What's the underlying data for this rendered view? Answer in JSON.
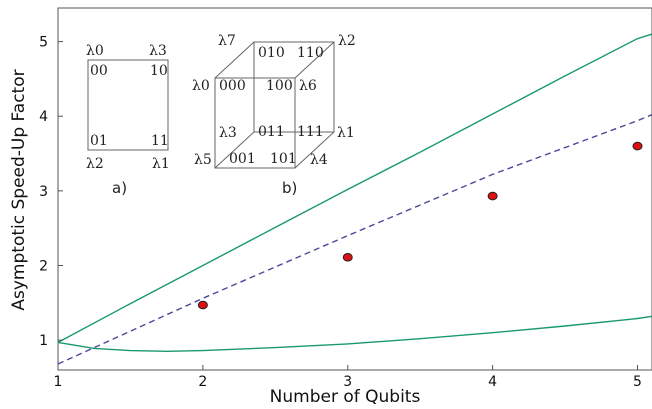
{
  "chart_data": {
    "type": "line",
    "xlabel": "Number of Qubits",
    "ylabel": "Asymptotic Speed-Up Factor",
    "xlim": [
      1,
      5.1
    ],
    "ylim": [
      0.6,
      5.45
    ],
    "xticks": [
      "1",
      "2",
      "3",
      "4",
      "5"
    ],
    "yticks": [
      "1",
      "2",
      "3",
      "4",
      "5"
    ],
    "grid": false,
    "series": [
      {
        "style": "solid",
        "color": "#1a9a6a",
        "x": [
          1,
          1.5,
          2,
          2.5,
          3,
          3.5,
          4,
          4.5,
          5,
          5.1
        ],
        "y": [
          0.97,
          1.49,
          2.0,
          2.51,
          3.02,
          3.52,
          4.03,
          4.54,
          5.04,
          5.1
        ]
      },
      {
        "style": "solid",
        "color": "#1a9a6a",
        "x": [
          1,
          1.25,
          1.5,
          1.75,
          2,
          2.5,
          3,
          3.5,
          4,
          4.5,
          5,
          5.1
        ],
        "y": [
          0.97,
          0.89,
          0.86,
          0.85,
          0.86,
          0.9,
          0.95,
          1.02,
          1.1,
          1.19,
          1.29,
          1.32
        ]
      },
      {
        "style": "dashed",
        "color": "#4a4a9a",
        "x": [
          1,
          2,
          3,
          4,
          5,
          5.1
        ],
        "y": [
          0.68,
          1.56,
          2.4,
          3.22,
          3.94,
          4.02
        ]
      },
      {
        "style": "points",
        "color": "#dd1111",
        "x": [
          2,
          3,
          4,
          5
        ],
        "y": [
          1.47,
          2.11,
          2.93,
          3.6
        ]
      }
    ]
  },
  "insets": {
    "a": {
      "label": "a)",
      "corner_labels": [
        "λ0",
        "λ3",
        "λ2",
        "λ1"
      ],
      "bits": [
        "00",
        "10",
        "01",
        "11"
      ]
    },
    "b": {
      "label": "b)",
      "corner_labels": [
        "λ7",
        "λ2",
        "λ0",
        "λ6",
        "λ3",
        "λ1",
        "λ5",
        "λ4"
      ],
      "bits": [
        "010",
        "110",
        "000",
        "100",
        "011",
        "111",
        "001",
        "101"
      ]
    }
  }
}
